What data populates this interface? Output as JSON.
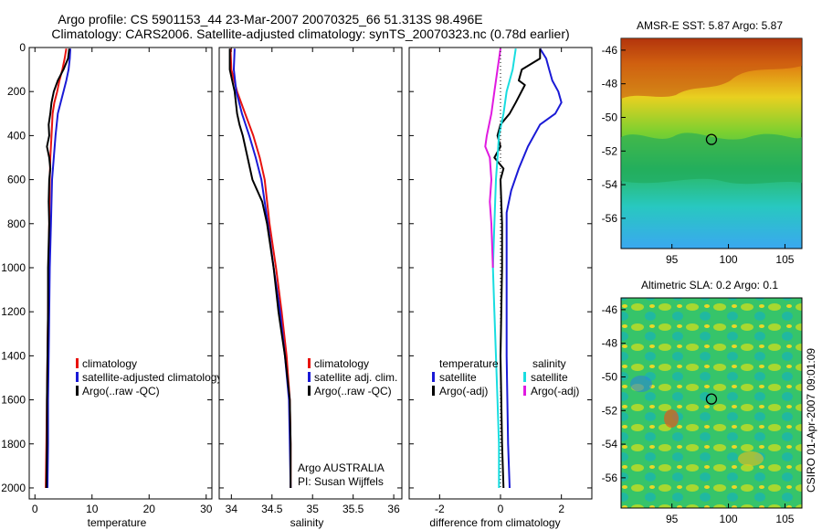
{
  "title_line1": "Argo profile: CS 5901153_44 23-Mar-2007 20070325_66 51.313S 98.496E",
  "title_line2": "Climatology: CARS2006. Satellite-adjusted climatology: synTS_20070323.nc (0.78d earlier)",
  "side_caption": "CSIRO 01-Apr-2007 09:01:09",
  "colors": {
    "climatology": "#e8130f",
    "satellite": "#1a1ad6",
    "argo": "#000000",
    "sal_satellite": "#19dde0",
    "sal_argo": "#e01ae0",
    "marker": "#000000"
  },
  "chart_data": [
    {
      "id": "temperature",
      "type": "line",
      "xlabel": "temperature",
      "ylabel": "",
      "xlim": [
        -1,
        31
      ],
      "ylim": [
        2050,
        0
      ],
      "xticks": [
        0,
        10,
        20,
        30
      ],
      "yticks": [
        0,
        200,
        400,
        600,
        800,
        1000,
        1200,
        1400,
        1600,
        1800,
        2000
      ],
      "legend": {
        "position": "lower-middle",
        "entries": [
          "climatology",
          "satellite-adjusted climatology",
          "Argo(..raw -QC)"
        ]
      },
      "series": [
        {
          "name": "climatology",
          "color_key": "climatology",
          "points": [
            [
              5.5,
              5
            ],
            [
              5.2,
              50
            ],
            [
              4.8,
              100
            ],
            [
              4.3,
              150
            ],
            [
              3.9,
              200
            ],
            [
              3.4,
              250
            ],
            [
              3.1,
              300
            ],
            [
              2.9,
              400
            ],
            [
              2.7,
              500
            ],
            [
              2.6,
              600
            ],
            [
              2.5,
              800
            ],
            [
              2.4,
              1000
            ],
            [
              2.3,
              1200
            ],
            [
              2.2,
              1400
            ],
            [
              2.1,
              1600
            ],
            [
              2.0,
              1800
            ],
            [
              1.9,
              2000
            ]
          ]
        },
        {
          "name": "satellite-adjusted climatology",
          "color_key": "satellite",
          "points": [
            [
              6.2,
              5
            ],
            [
              6.1,
              50
            ],
            [
              5.9,
              100
            ],
            [
              5.5,
              150
            ],
            [
              5.0,
              200
            ],
            [
              4.5,
              250
            ],
            [
              4.0,
              300
            ],
            [
              3.6,
              400
            ],
            [
              3.3,
              500
            ],
            [
              3.0,
              600
            ],
            [
              2.8,
              800
            ],
            [
              2.6,
              1000
            ],
            [
              2.5,
              1200
            ],
            [
              2.4,
              1400
            ],
            [
              2.3,
              1600
            ],
            [
              2.3,
              1800
            ],
            [
              2.2,
              2000
            ]
          ]
        },
        {
          "name": "Argo(..raw -QC)",
          "color_key": "argo",
          "points": [
            [
              6.0,
              5
            ],
            [
              5.8,
              50
            ],
            [
              5.0,
              100
            ],
            [
              4.0,
              150
            ],
            [
              3.3,
              200
            ],
            [
              2.9,
              250
            ],
            [
              2.7,
              300
            ],
            [
              2.4,
              350
            ],
            [
              2.5,
              400
            ],
            [
              2.1,
              450
            ],
            [
              2.5,
              500
            ],
            [
              2.7,
              550
            ],
            [
              2.5,
              600
            ],
            [
              2.4,
              700
            ],
            [
              2.5,
              800
            ],
            [
              2.3,
              1000
            ],
            [
              2.3,
              1200
            ],
            [
              2.2,
              1400
            ],
            [
              2.1,
              1600
            ],
            [
              2.1,
              1800
            ],
            [
              2.0,
              2000
            ]
          ]
        }
      ]
    },
    {
      "id": "salinity",
      "type": "line",
      "xlabel": "salinity",
      "ylabel": "",
      "xlim": [
        33.85,
        36.1
      ],
      "ylim": [
        2050,
        0
      ],
      "xticks": [
        34,
        34.5,
        35,
        35.5,
        36
      ],
      "xtick_labels": [
        "34",
        "34.5",
        "35",
        "35.5",
        "36"
      ],
      "yticks": [
        0,
        200,
        400,
        600,
        800,
        1000,
        1200,
        1400,
        1600,
        1800,
        2000
      ],
      "legend": {
        "position": "lower-right",
        "entries": [
          "climatology",
          "satellite adj. clim.",
          "Argo(..raw -QC)"
        ]
      },
      "annotations": [
        "Argo AUSTRALIA",
        "PI: Susan Wijffels"
      ],
      "series": [
        {
          "name": "climatology",
          "color_key": "climatology",
          "points": [
            [
              33.99,
              5
            ],
            [
              34.0,
              100
            ],
            [
              34.07,
              200
            ],
            [
              34.17,
              300
            ],
            [
              34.27,
              400
            ],
            [
              34.35,
              500
            ],
            [
              34.41,
              600
            ],
            [
              34.47,
              800
            ],
            [
              34.55,
              1000
            ],
            [
              34.62,
              1200
            ],
            [
              34.68,
              1400
            ],
            [
              34.72,
              1600
            ],
            [
              34.73,
              1800
            ],
            [
              34.73,
              2000
            ]
          ]
        },
        {
          "name": "satellite adj. clim.",
          "color_key": "satellite",
          "points": [
            [
              34.04,
              5
            ],
            [
              34.03,
              100
            ],
            [
              34.06,
              200
            ],
            [
              34.13,
              300
            ],
            [
              34.22,
              400
            ],
            [
              34.3,
              500
            ],
            [
              34.37,
              600
            ],
            [
              34.45,
              800
            ],
            [
              34.52,
              1000
            ],
            [
              34.6,
              1200
            ],
            [
              34.66,
              1400
            ],
            [
              34.71,
              1600
            ],
            [
              34.72,
              1800
            ],
            [
              34.73,
              2000
            ]
          ]
        },
        {
          "name": "Argo(..raw -QC)",
          "color_key": "argo",
          "points": [
            [
              33.98,
              5
            ],
            [
              33.98,
              100
            ],
            [
              34.04,
              200
            ],
            [
              34.07,
              300
            ],
            [
              34.1,
              350
            ],
            [
              34.14,
              400
            ],
            [
              34.2,
              500
            ],
            [
              34.26,
              600
            ],
            [
              34.38,
              700
            ],
            [
              34.44,
              800
            ],
            [
              34.52,
              1000
            ],
            [
              34.58,
              1200
            ],
            [
              34.66,
              1400
            ],
            [
              34.72,
              1600
            ],
            [
              34.73,
              1800
            ],
            [
              34.73,
              2000
            ]
          ]
        }
      ]
    },
    {
      "id": "difference",
      "type": "line",
      "xlabel": "difference from climatology",
      "ylabel": "",
      "xlim": [
        -3,
        3
      ],
      "ylim": [
        2050,
        0
      ],
      "xticks": [
        -2,
        0,
        2
      ],
      "yticks": [
        0,
        200,
        400,
        600,
        800,
        1000,
        1200,
        1400,
        1600,
        1800,
        2000
      ],
      "legend": {
        "position": "lower-middle",
        "groups": [
          {
            "title": "temperature",
            "entries": [
              "satellite",
              "Argo(-adj)"
            ]
          },
          {
            "title": "salinity",
            "entries": [
              "satellite",
              "Argo(-adj)"
            ]
          }
        ]
      },
      "series": [
        {
          "name": "temperature satellite",
          "color_key": "satellite",
          "points": [
            [
              1.3,
              5
            ],
            [
              1.5,
              50
            ],
            [
              1.6,
              100
            ],
            [
              1.7,
              150
            ],
            [
              1.9,
              200
            ],
            [
              2.0,
              250
            ],
            [
              1.8,
              300
            ],
            [
              1.3,
              350
            ],
            [
              0.9,
              450
            ],
            [
              0.6,
              550
            ],
            [
              0.35,
              650
            ],
            [
              0.2,
              750
            ],
            [
              0.2,
              1000
            ],
            [
              0.2,
              1400
            ],
            [
              0.25,
              1800
            ],
            [
              0.3,
              2000
            ]
          ]
        },
        {
          "name": "temperature Argo(-adj)",
          "color_key": "argo",
          "points": [
            [
              1.3,
              5
            ],
            [
              1.3,
              50
            ],
            [
              0.7,
              100
            ],
            [
              0.6,
              150
            ],
            [
              0.8,
              170
            ],
            [
              0.5,
              250
            ],
            [
              0.3,
              300
            ],
            [
              0.0,
              350
            ],
            [
              -0.1,
              400
            ],
            [
              0.0,
              450
            ],
            [
              -0.2,
              500
            ],
            [
              0.1,
              550
            ],
            [
              0.0,
              600
            ],
            [
              0.05,
              800
            ],
            [
              0.05,
              1000
            ],
            [
              0.0,
              1400
            ],
            [
              0.05,
              1800
            ],
            [
              0.1,
              2000
            ]
          ]
        },
        {
          "name": "salinity satellite",
          "color_key": "sal_satellite",
          "points": [
            [
              0.5,
              5
            ],
            [
              0.4,
              100
            ],
            [
              0.2,
              200
            ],
            [
              0.1,
              300
            ],
            [
              -0.05,
              400
            ],
            [
              -0.1,
              500
            ],
            [
              -0.15,
              600
            ],
            [
              -0.2,
              800
            ],
            [
              -0.25,
              1000
            ],
            [
              -0.2,
              1200
            ],
            [
              -0.15,
              1400
            ],
            [
              -0.1,
              1600
            ],
            [
              -0.05,
              1800
            ],
            [
              -0.05,
              2000
            ]
          ]
        },
        {
          "name": "salinity Argo(-adj)",
          "color_key": "sal_argo",
          "points": [
            [
              0.0,
              5
            ],
            [
              -0.1,
              100
            ],
            [
              -0.2,
              200
            ],
            [
              -0.3,
              300
            ],
            [
              -0.45,
              400
            ],
            [
              -0.5,
              450
            ],
            [
              -0.35,
              500
            ],
            [
              -0.3,
              600
            ],
            [
              -0.35,
              700
            ],
            [
              -0.3,
              800
            ],
            [
              -0.25,
              1000
            ]
          ]
        },
        {
          "name": "zero line",
          "color_key": "argo",
          "dotted": true,
          "points": [
            [
              0,
              0
            ],
            [
              0,
              2000
            ]
          ]
        }
      ]
    },
    {
      "id": "amsr_sst",
      "type": "heatmap",
      "title": "AMSR-E SST: 5.87 Argo: 5.87",
      "xlim": [
        90.5,
        106.5
      ],
      "ylim": [
        -57.8,
        -45.3
      ],
      "xticks": [
        95,
        100,
        105
      ],
      "yticks": [
        -46,
        -48,
        -50,
        -52,
        -54,
        -56
      ],
      "marker": [
        98.496,
        -51.313
      ]
    },
    {
      "id": "altimetric_sla",
      "type": "heatmap",
      "title": "Altimetric SLA: 0.2 Argo: 0.1",
      "xlim": [
        90.5,
        106.5
      ],
      "ylim": [
        -57.8,
        -45.3
      ],
      "xticks": [
        95,
        100,
        105
      ],
      "yticks": [
        -46,
        -48,
        -50,
        -52,
        -54,
        -56
      ],
      "marker": [
        98.496,
        -51.313
      ]
    }
  ]
}
